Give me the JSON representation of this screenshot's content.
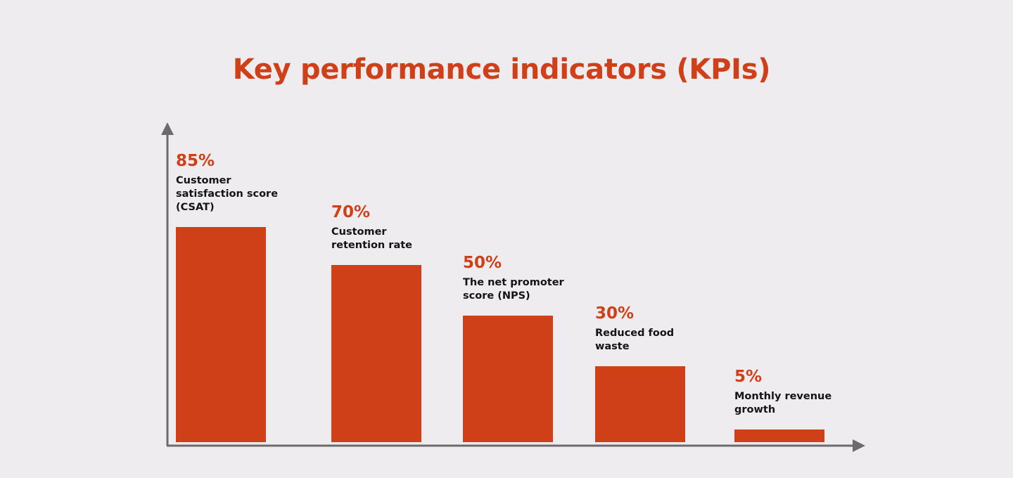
{
  "colors": {
    "background": "#eeecef",
    "accent": "#cf3f18",
    "axis": "#6b6b6e",
    "label_text": "#141414"
  },
  "chart_data": {
    "type": "bar",
    "title": "Key performance indicators (KPIs)",
    "xlabel": "",
    "ylabel": "",
    "ylim": [
      0,
      100
    ],
    "grid": false,
    "legend": "none",
    "unit": "%",
    "categories": [
      [
        "Customer",
        "satisfaction score",
        "(CSAT)"
      ],
      [
        "Customer",
        "retention rate"
      ],
      [
        "The net promoter",
        "score (NPS)"
      ],
      [
        "Reduced food",
        "waste"
      ],
      [
        "Monthly revenue",
        "growth"
      ]
    ],
    "values": [
      85,
      70,
      50,
      30,
      5
    ],
    "value_labels": [
      "85%",
      "70%",
      "50%",
      "30%",
      "5%"
    ]
  }
}
